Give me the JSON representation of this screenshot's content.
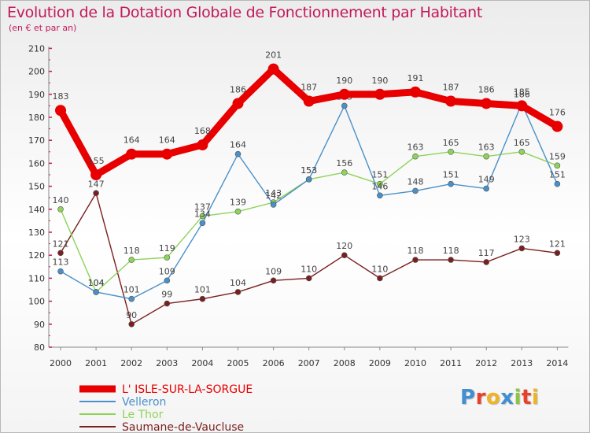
{
  "title": "Evolution de la Dotation Globale de Fonctionnement par Habitant",
  "subtitle": "(en € et par an)",
  "logo": {
    "text": "Proxiti",
    "colors": [
      "#3f8fd2",
      "#e8402a",
      "#f0b324",
      "#3f8fd2",
      "#8cc63e",
      "#e8402a",
      "#f0b324"
    ]
  },
  "chart_data": {
    "type": "line",
    "x": [
      "2000",
      "2001",
      "2002",
      "2003",
      "2004",
      "2005",
      "2006",
      "2007",
      "2008",
      "2009",
      "2010",
      "2011",
      "2012",
      "2013",
      "2014"
    ],
    "ylim": [
      80,
      210
    ],
    "yticks": [
      "80",
      "90",
      "100",
      "110",
      "120",
      "130",
      "140",
      "150",
      "160",
      "170",
      "180",
      "190",
      "200",
      "210"
    ],
    "grid": false,
    "legend_position": "bottom-left",
    "series": [
      {
        "name": "L' ISLE-SUR-LA-SORGUE",
        "color": "#e80000",
        "values": [
          183,
          155,
          164,
          164,
          168,
          186,
          201,
          187,
          190,
          190,
          191,
          187,
          186,
          185,
          176
        ]
      },
      {
        "name": "Velleron",
        "color": "#4a90c8",
        "values": [
          113,
          104,
          101,
          109,
          134,
          164,
          142,
          153,
          185,
          146,
          148,
          151,
          149,
          186,
          151
        ]
      },
      {
        "name": "Le Thor",
        "color": "#8ed45a",
        "values": [
          140,
          104,
          118,
          119,
          137,
          139,
          143,
          153,
          156,
          151,
          163,
          165,
          163,
          165,
          159
        ]
      },
      {
        "name": "Saumane-de-Vaucluse",
        "color": "#7a1f1f",
        "values": [
          121,
          147,
          90,
          99,
          101,
          104,
          109,
          110,
          120,
          110,
          118,
          118,
          117,
          123,
          121
        ]
      }
    ]
  }
}
